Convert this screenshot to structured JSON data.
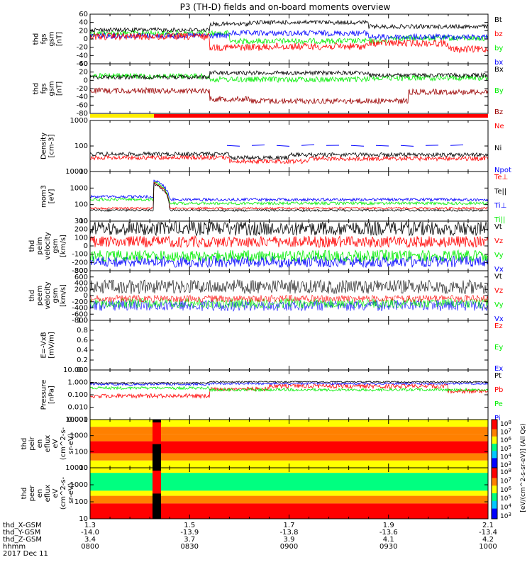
{
  "title": "P3 (TH-D) fields and on-board moments overview",
  "colors": {
    "black": "#000000",
    "red": "#ff0000",
    "green": "#00ee00",
    "blue": "#0000ff",
    "darkred": "#9a0000",
    "yellow": "#ffee00"
  },
  "chart_data": [
    {
      "type": "line",
      "id": "fgs_gsm",
      "ylabel": [
        "thd",
        "fgs",
        "gsm",
        "[nT]"
      ],
      "yticks": [
        60,
        40,
        20,
        0,
        -20,
        -40,
        -60
      ],
      "ylim": [
        -60,
        60
      ],
      "series": [
        {
          "name": "Bt",
          "color": "black"
        },
        {
          "name": "bz",
          "color": "red"
        },
        {
          "name": "by",
          "color": "green"
        },
        {
          "name": "bx",
          "color": "blue"
        }
      ]
    },
    {
      "type": "line",
      "id": "fgs_gsm_components",
      "ylabel": [
        "thd",
        "fgs",
        "gsm",
        "[nT]"
      ],
      "yticks": [
        40,
        20,
        0,
        -20,
        -40,
        -60,
        -80
      ],
      "ylim": [
        -80,
        40
      ],
      "series": [
        {
          "name": "Bx",
          "color": "black"
        },
        {
          "name": "By",
          "color": "green"
        },
        {
          "name": "Bz",
          "color": "darkred"
        }
      ]
    },
    {
      "type": "line",
      "id": "density",
      "ylabel": [
        "Density",
        "[cm-3]"
      ],
      "log": true,
      "yticks": [
        "1000",
        "100",
        "10"
      ],
      "ylim": [
        10,
        1000
      ],
      "series": [
        {
          "name": "Ne",
          "color": "red"
        },
        {
          "name": "Ni",
          "color": "black"
        },
        {
          "name": "Npot",
          "color": "blue"
        }
      ]
    },
    {
      "type": "line",
      "id": "temperature",
      "ylabel": [
        "mom3",
        "[eV]"
      ],
      "log": true,
      "yticks": [
        "10000",
        "1000",
        "100",
        "10"
      ],
      "ylim": [
        10,
        10000
      ],
      "series": [
        {
          "name": "Te⊥",
          "color": "red"
        },
        {
          "name": "Te||",
          "color": "black"
        },
        {
          "name": "Ti⊥",
          "color": "blue"
        },
        {
          "name": "Ti||",
          "color": "green"
        }
      ]
    },
    {
      "type": "line",
      "id": "ion_velocity",
      "ylabel": [
        "thd",
        "peim",
        "velocity",
        "gsm",
        "[km/s]"
      ],
      "yticks": [
        300,
        200,
        100,
        0,
        -100,
        -200,
        -300
      ],
      "ylim": [
        -300,
        300
      ],
      "series": [
        {
          "name": "Vt",
          "color": "black"
        },
        {
          "name": "Vz",
          "color": "red"
        },
        {
          "name": "Vy",
          "color": "green"
        },
        {
          "name": "Vx",
          "color": "blue"
        }
      ]
    },
    {
      "type": "line",
      "id": "electron_velocity",
      "ylabel": [
        "thd",
        "peem",
        "velocity",
        "gsm",
        "[km/s]"
      ],
      "yticks": [
        800,
        600,
        400,
        200,
        0,
        -200,
        -400,
        -600,
        -800
      ],
      "ylim": [
        -800,
        800
      ],
      "series": [
        {
          "name": "Vt",
          "color": "black"
        },
        {
          "name": "Vz",
          "color": "red"
        },
        {
          "name": "Vy",
          "color": "green"
        },
        {
          "name": "Vx",
          "color": "blue"
        }
      ]
    },
    {
      "type": "line",
      "id": "efield",
      "ylabel": [
        "E=-VxB",
        "[mV/m]"
      ],
      "yticks": [
        "1.0",
        "0.8",
        "0.6",
        "0.4",
        "0.2",
        "0.0"
      ],
      "ylim": [
        0,
        1
      ],
      "series": [
        {
          "name": "Ez",
          "color": "red"
        },
        {
          "name": "Ey",
          "color": "green"
        },
        {
          "name": "Ex",
          "color": "blue"
        }
      ]
    },
    {
      "type": "line",
      "id": "pressure",
      "ylabel": [
        "Pressure",
        "[nPa]"
      ],
      "log": true,
      "yticks": [
        "10.000",
        "1.000",
        "0.100",
        "0.010",
        "0.001"
      ],
      "ylim": [
        0.001,
        10
      ],
      "series": [
        {
          "name": "Pt",
          "color": "black"
        },
        {
          "name": "Pb",
          "color": "red"
        },
        {
          "name": "Pe",
          "color": "green"
        },
        {
          "name": "Pi",
          "color": "blue"
        }
      ]
    },
    {
      "type": "heatmap",
      "id": "ion_spectrogram",
      "ylabel": [
        "thd",
        "peir",
        "en",
        "eflux",
        "eV",
        "(cm^2-s-",
        "sr-eV)"
      ],
      "yticks": [
        "10000",
        "1000",
        "100",
        "10"
      ]
    },
    {
      "type": "heatmap",
      "id": "electron_spectrogram",
      "ylabel": [
        "thd",
        "peer",
        "en",
        "eflux",
        "eV",
        "(cm^2-s-",
        "sr-eV)"
      ],
      "yticks": [
        "10000",
        "1000",
        "100",
        "10"
      ]
    }
  ],
  "colorbar": {
    "label": "[eV/(cm^2-s-sr-eV)] (All Qs)",
    "ticks": [
      "10^8",
      "10^7",
      "10^6",
      "10^5",
      "10^4",
      "10^3"
    ],
    "ticks2": [
      "10^8",
      "10^7",
      "10^6",
      "10^5",
      "10^4",
      "10^3"
    ]
  },
  "footer": {
    "rows": [
      {
        "label": "thd_X-GSM",
        "values": [
          "1.3",
          "1.5",
          "1.7",
          "1.9",
          "2.1"
        ]
      },
      {
        "label": "thd_Y-GSM",
        "values": [
          "-14.0",
          "-13.9",
          "-13.8",
          "-13.6",
          "-13.4"
        ]
      },
      {
        "label": "thd_Z-GSM",
        "values": [
          "3.4",
          "3.7",
          "3.9",
          "4.1",
          "4.2"
        ]
      },
      {
        "label": "hhmm",
        "values": [
          "0800",
          "0830",
          "0900",
          "0930",
          "1000"
        ]
      }
    ],
    "date": "2017 Dec 11"
  }
}
